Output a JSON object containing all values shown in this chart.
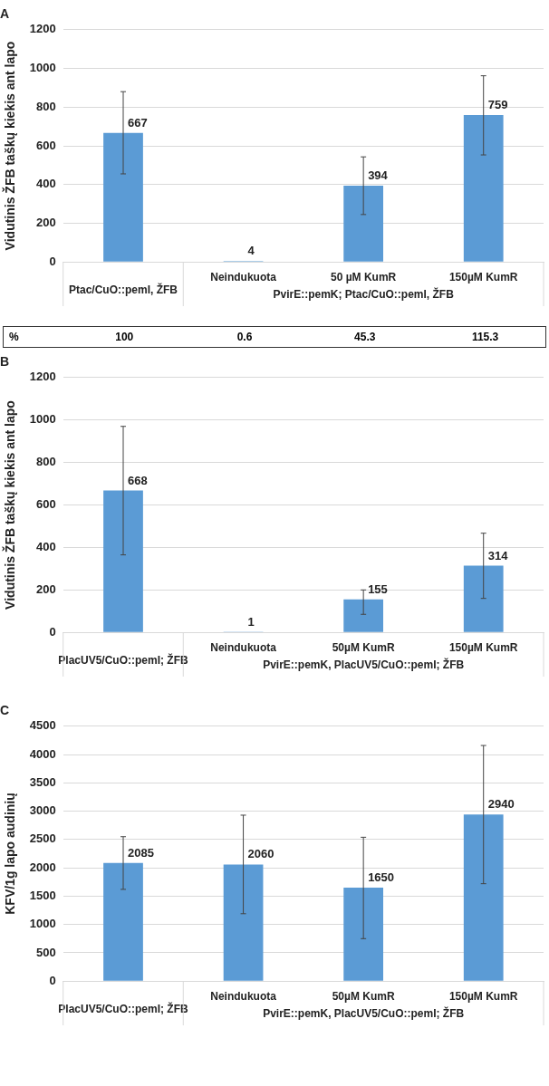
{
  "chart_data": [
    {
      "type": "bar",
      "title": "A",
      "ylabel": "Vidutinis ŽFB taškų kiekis ant lapo",
      "categories": [
        "Ptac/CuO::pemI, ŽFB",
        "Neindukuota",
        "50 µM KumR",
        "150µM KumR"
      ],
      "values": [
        667,
        4,
        394,
        759
      ],
      "errors": [
        [
          455,
          880
        ],
        null,
        [
          245,
          543
        ],
        [
          553,
          962
        ]
      ],
      "color": "#5b9bd5",
      "ylim": [
        0,
        1200
      ],
      "yticks": [
        0,
        200,
        400,
        600,
        800,
        1000,
        1200
      ],
      "grid": "y",
      "data_labels": true,
      "annotations": [
        "PvirE::pemK; Ptac/CuO::pemI, ŽFB",
        "%",
        "100",
        "0.6",
        "45.3",
        "115.3"
      ]
    },
    {
      "type": "bar",
      "title": "B",
      "ylabel": "Vidutinis ŽFB taškų kiekis ant lapo",
      "categories": [
        "PlacUV5/CuO::pemI; ŽFB",
        "Neindukuota",
        "50µM KumR",
        "150µM KumR"
      ],
      "values": [
        668,
        1,
        155,
        314
      ],
      "errors": [
        [
          365,
          970
        ],
        null,
        [
          85,
          200
        ],
        [
          160,
          467
        ]
      ],
      "color": "#5b9bd5",
      "ylim": [
        0,
        1200
      ],
      "yticks": [
        0,
        200,
        400,
        600,
        800,
        1000,
        1200
      ],
      "grid": "y",
      "data_labels": true,
      "annotations": [
        "PvirE::pemK, PlacUV5/CuO::pemI; ŽFB"
      ]
    },
    {
      "type": "bar",
      "title": "C",
      "ylabel": "KFV/1g lapo audinių",
      "categories": [
        "PlacUV5/CuO::pemI; ŽFB",
        "Neindukuota",
        "50µM KumR",
        "150µM KumR"
      ],
      "values": [
        2085,
        2060,
        1650,
        2940
      ],
      "errors": [
        [
          1620,
          2550
        ],
        [
          1190,
          2930
        ],
        [
          750,
          2540
        ],
        [
          1720,
          4160
        ]
      ],
      "color": "#5b9bd5",
      "ylim": [
        0,
        4500
      ],
      "yticks": [
        0,
        500,
        1000,
        1500,
        2000,
        2500,
        3000,
        3500,
        4000,
        4500
      ],
      "grid": "y",
      "data_labels": true,
      "annotations": [
        "PvirE::pemK, PlacUV5/CuO::pemI; ŽFB"
      ]
    }
  ]
}
